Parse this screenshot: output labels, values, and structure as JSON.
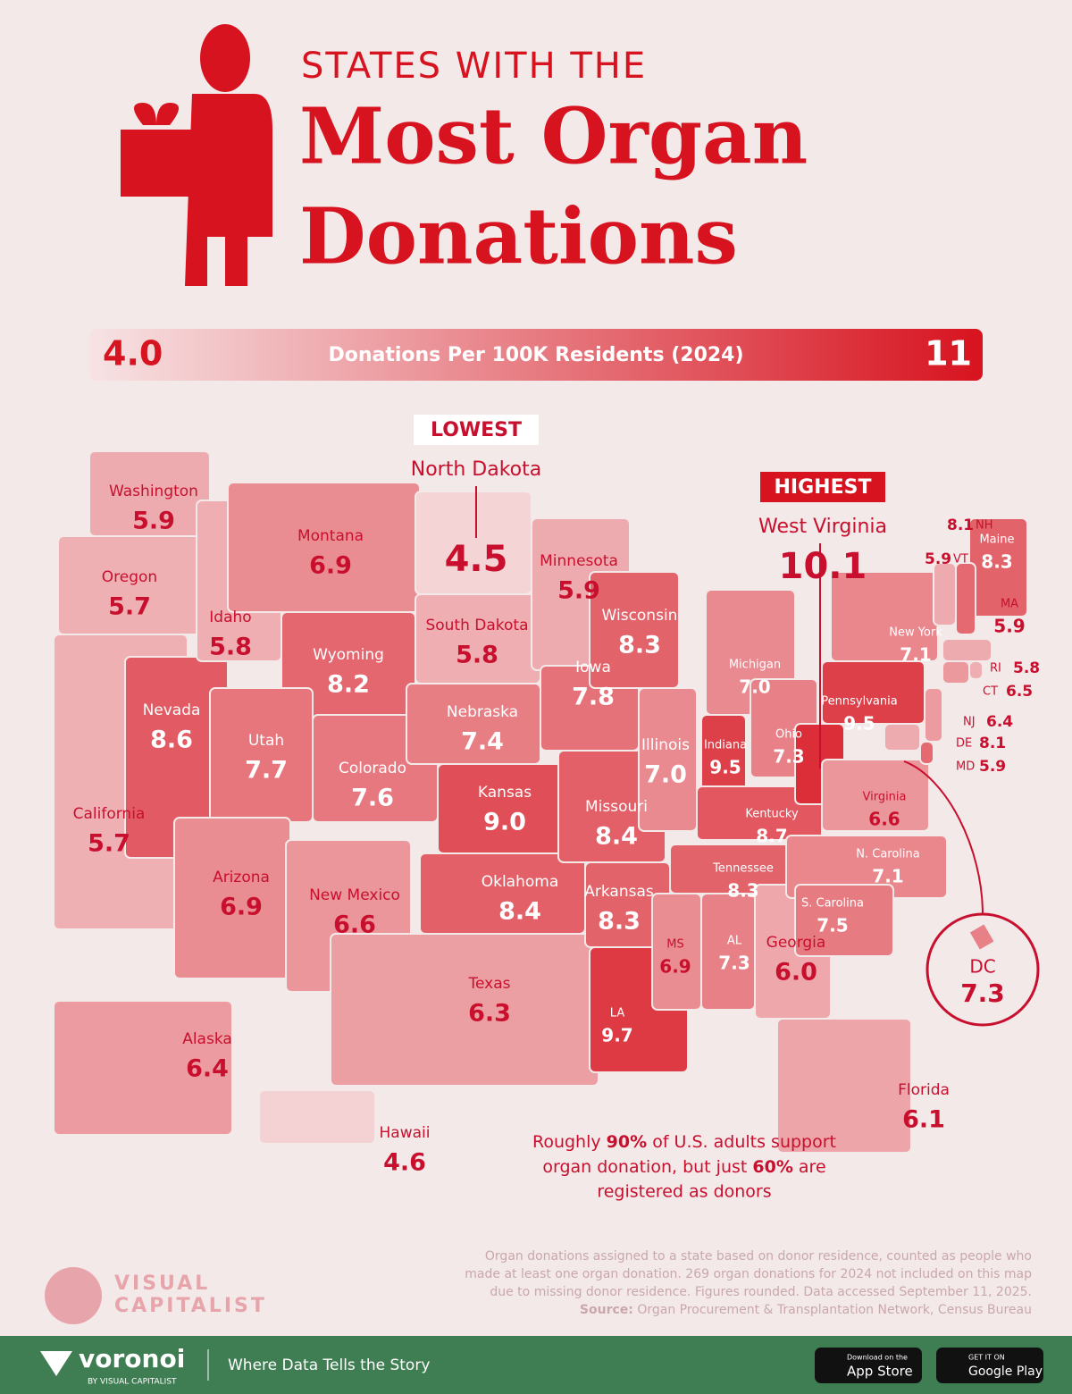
{
  "header": {
    "kicker": "STATES WITH THE",
    "title_line1": "Most Organ",
    "title_line2": "Donations"
  },
  "chart_data": {
    "type": "map",
    "color_scale": {
      "min": {
        "value": 4,
        "label": "4.0"
      },
      "max": 11,
      "colors": [
        "#f7e3e4",
        "#d7131f"
      ],
      "label": "Donations Per 100K Residents (2024)"
    },
    "annotations": [
      "LOWEST",
      "HIGHEST"
    ],
    "categories": [
      "Washington",
      "Oregon",
      "California",
      "Nevada",
      "Idaho",
      "Montana",
      "Wyoming",
      "Utah",
      "Colorado",
      "Arizona",
      "New Mexico",
      "North Dakota",
      "South Dakota",
      "Nebraska",
      "Kansas",
      "Oklahoma",
      "Texas",
      "Minnesota",
      "Iowa",
      "Missouri",
      "Arkansas",
      "LA",
      "Wisconsin",
      "Illinois",
      "MS",
      "Michigan",
      "Indiana",
      "Kentucky",
      "Tennessee",
      "AL",
      "Georgia",
      "Florida",
      "Ohio",
      "West Virginia",
      "Pennsylvania",
      "New York",
      "Virginia",
      "N. Carolina",
      "S. Carolina",
      "Maine",
      "NH",
      "VT",
      "MA",
      "RI",
      "CT",
      "NJ",
      "DE",
      "MD",
      "DC",
      "Alaska",
      "Hawaii"
    ],
    "values": [
      5.9,
      5.7,
      5.7,
      8.6,
      5.8,
      6.9,
      8.2,
      7.7,
      7.6,
      6.9,
      6.6,
      4.5,
      5.8,
      7.4,
      9.0,
      8.4,
      6.3,
      5.9,
      7.8,
      8.4,
      8.3,
      9.7,
      8.3,
      7.0,
      6.9,
      7.0,
      9.5,
      8.7,
      8.3,
      7.3,
      6.0,
      6.1,
      7.3,
      10.1,
      9.5,
      7.1,
      6.6,
      7.1,
      7.5,
      8.3,
      8.1,
      5.9,
      5.9,
      5.8,
      6.5,
      6.4,
      8.1,
      5.9,
      7.3,
      6.4,
      4.6
    ],
    "value_labels": [
      "5.9",
      "5.7",
      "5.7",
      "8.6",
      "5.8",
      "6.9",
      "8.2",
      "7.7",
      "7.6",
      "6.9",
      "6.6",
      "4.5",
      "5.8",
      "7.4",
      "9.0",
      "8.4",
      "6.3",
      "5.9",
      "7.8",
      "8.4",
      "8.3",
      "9.7",
      "8.3",
      "7.0",
      "6.9",
      "7.0",
      "9.5",
      "8.7",
      "8.3",
      "7.3",
      "6.0",
      "6.1",
      "7.3",
      "10.1",
      "9.5",
      "7.1",
      "6.6",
      "7.1",
      "7.5",
      "8.3",
      "8.1",
      "5.9",
      "5.9",
      "5.8",
      "6.5",
      "6.4",
      "8.1",
      "5.9",
      "7.3",
      "6.4",
      "4.6"
    ]
  },
  "insight": [
    "Roughly ",
    "90%",
    " of U.S. adults support",
    "organ donation, but just ",
    "60%",
    " are",
    "registered as donors"
  ],
  "notes": [
    "Organ donations assigned to a state based on donor residence, counted as people who",
    "made at least one organ donation. 269 organ donations for 2024 not included on this map",
    "due to missing donor residence. Figures rounded. Data accessed September 11, 2025."
  ],
  "source": {
    "label": "Source:",
    "text": " Organ Procurement & Transplantation Network, Census Bureau"
  },
  "brand": {
    "line1": "VISUAL",
    "line2": "CAPITALIST"
  },
  "footer": {
    "logo": "voronoi",
    "logo_sub": "BY VISUAL CAPITALIST",
    "tagline": "Where Data Tells the Story",
    "app_small": "Download on the",
    "app": "App Store",
    "play_small": "GET IT ON",
    "play": "Google Play"
  }
}
